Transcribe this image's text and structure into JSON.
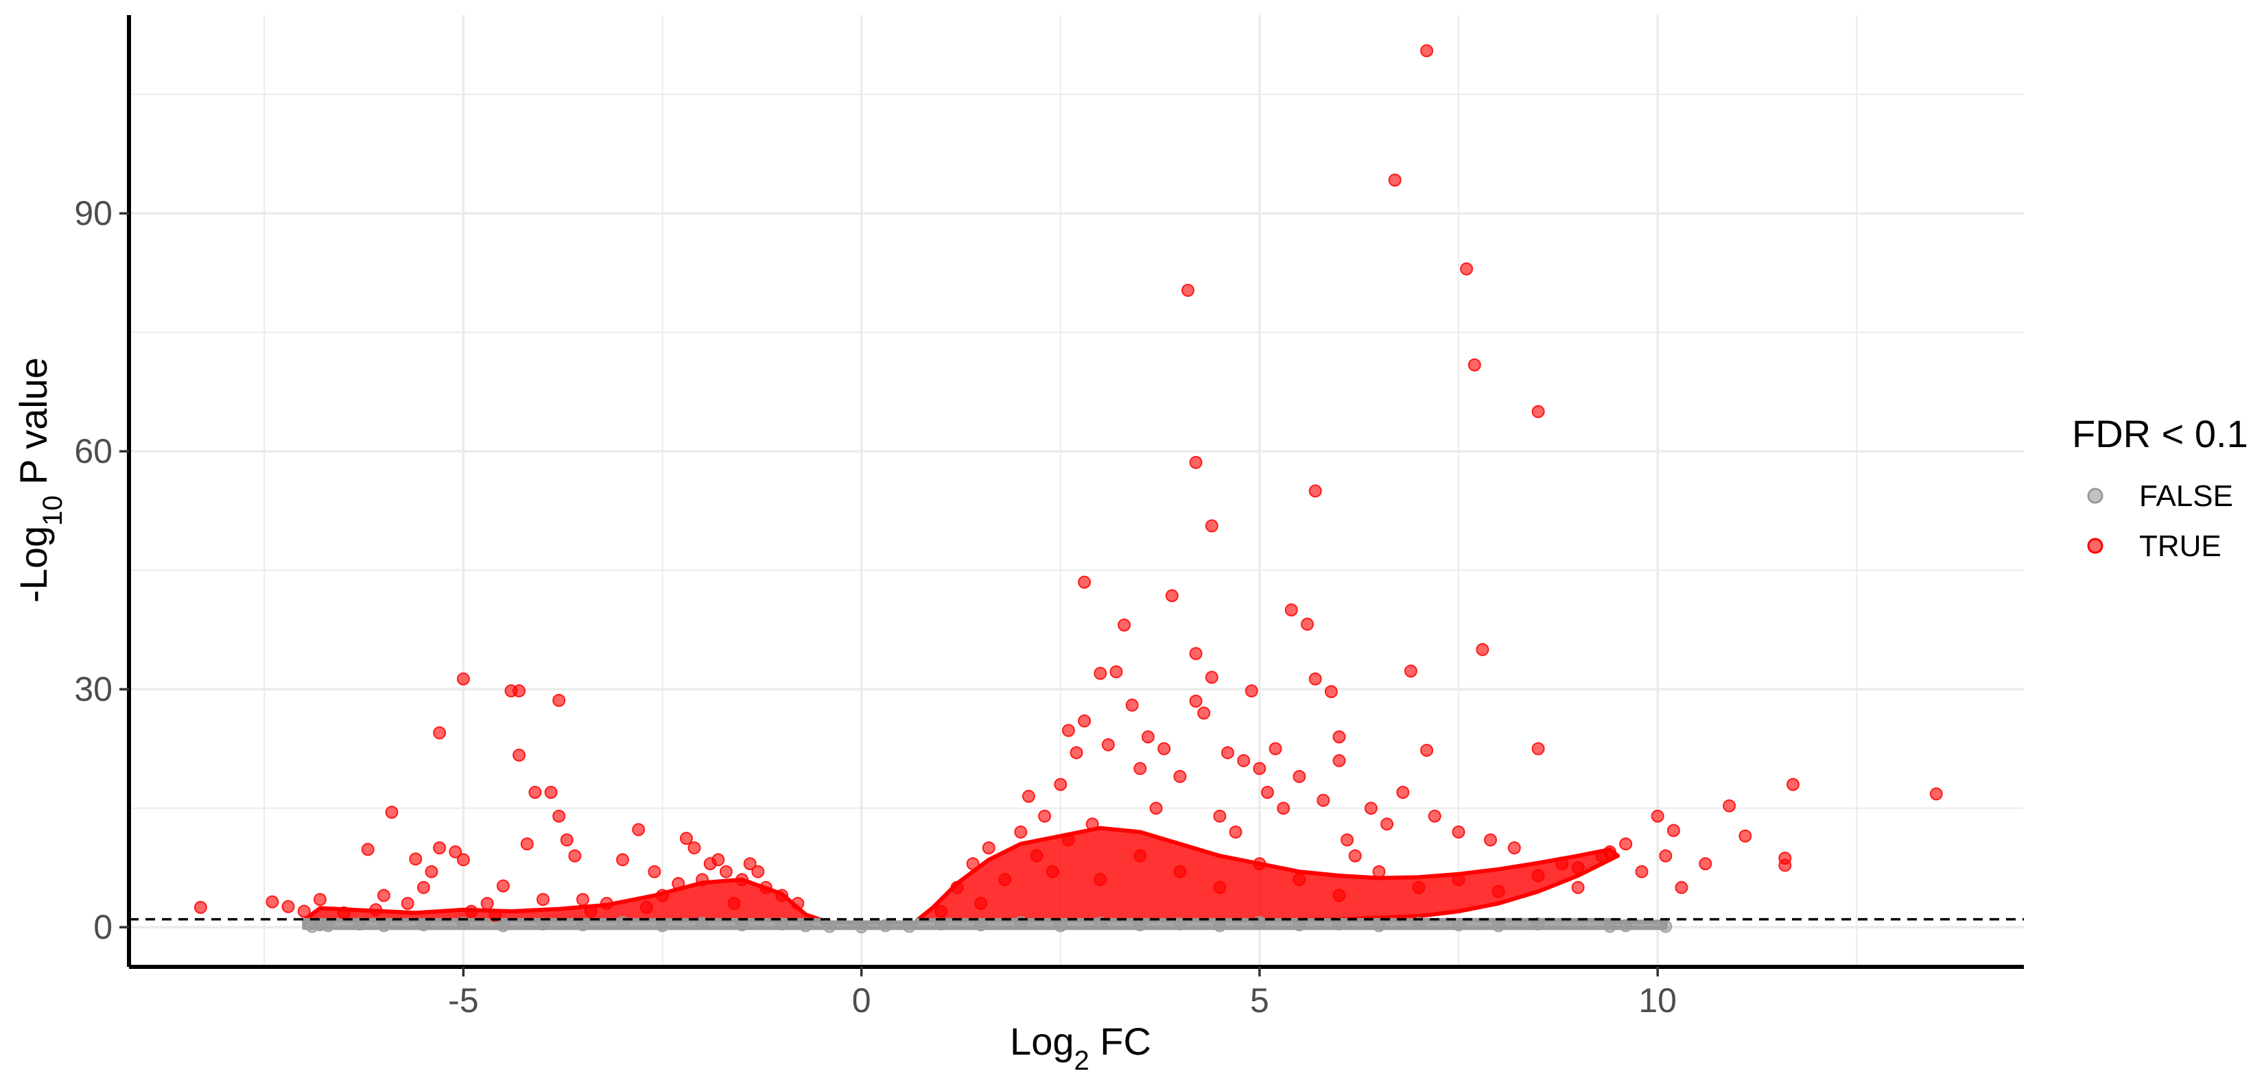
{
  "chart_data": {
    "type": "scatter",
    "title": "",
    "xlabel": {
      "main": "Log",
      "sub": "2",
      "rest": " FC"
    },
    "ylabel": {
      "main": "-Log",
      "sub": "10",
      "rest": " P value"
    },
    "xlim": [
      -9.2,
      14.6
    ],
    "ylim": [
      -5,
      115
    ],
    "x_ticks": [
      -5,
      0,
      5,
      10
    ],
    "x_tick_labels": [
      "-5",
      "0",
      "5",
      "10"
    ],
    "y_ticks": [
      0,
      30,
      60,
      90
    ],
    "y_tick_labels": [
      "0",
      "30",
      "60",
      "90"
    ],
    "grid": true,
    "threshold_line": {
      "y": 1,
      "style": "dashed",
      "color": "#000000"
    },
    "legend": {
      "title": "FDR < 0.1",
      "position": "right",
      "entries": [
        {
          "label": "FALSE",
          "color": "#999999"
        },
        {
          "label": "TRUE",
          "color": "#ff0000"
        }
      ]
    },
    "series": [
      {
        "name": "FALSE",
        "color": "#999999",
        "points": [
          [
            -6.9,
            0.1
          ],
          [
            -6.8,
            0.3
          ],
          [
            -6.7,
            0.2
          ],
          [
            -6.3,
            0.4
          ],
          [
            -6.0,
            0.2
          ],
          [
            -5.5,
            0.3
          ],
          [
            -5.0,
            0.5
          ],
          [
            -4.5,
            0.2
          ],
          [
            -4.0,
            0.4
          ],
          [
            -3.5,
            0.3
          ],
          [
            -3.0,
            0.6
          ],
          [
            -2.5,
            0.2
          ],
          [
            -2.0,
            0.5
          ],
          [
            -1.5,
            0.3
          ],
          [
            -1.0,
            0.4
          ],
          [
            -0.7,
            0.2
          ],
          [
            -0.4,
            0.1
          ],
          [
            0.0,
            0.05
          ],
          [
            0.3,
            0.2
          ],
          [
            0.6,
            0.1
          ],
          [
            1.0,
            0.4
          ],
          [
            1.5,
            0.3
          ],
          [
            2.0,
            0.6
          ],
          [
            2.5,
            0.2
          ],
          [
            3.0,
            0.5
          ],
          [
            3.5,
            0.3
          ],
          [
            4.0,
            0.4
          ],
          [
            4.5,
            0.2
          ],
          [
            5.0,
            0.6
          ],
          [
            5.5,
            0.3
          ],
          [
            6.0,
            0.4
          ],
          [
            6.5,
            0.2
          ],
          [
            7.0,
            0.5
          ],
          [
            7.5,
            0.3
          ],
          [
            8.0,
            0.2
          ],
          [
            8.5,
            0.4
          ],
          [
            9.4,
            0.1
          ],
          [
            9.6,
            0.2
          ],
          [
            10.1,
            0.1
          ]
        ]
      },
      {
        "name": "TRUE",
        "color": "#ff0000",
        "points": [
          [
            -8.3,
            2.5
          ],
          [
            -7.4,
            3.2
          ],
          [
            -7.2,
            2.6
          ],
          [
            -7.0,
            2.0
          ],
          [
            -6.8,
            3.5
          ],
          [
            -6.5,
            1.8
          ],
          [
            -6.2,
            9.8
          ],
          [
            -6.1,
            2.2
          ],
          [
            -6.0,
            4.0
          ],
          [
            -5.9,
            14.5
          ],
          [
            -5.7,
            3.0
          ],
          [
            -5.6,
            8.6
          ],
          [
            -5.5,
            5.0
          ],
          [
            -5.4,
            7.0
          ],
          [
            -5.3,
            24.5
          ],
          [
            -5.3,
            10.0
          ],
          [
            -5.1,
            9.5
          ],
          [
            -5.0,
            8.5
          ],
          [
            -5.0,
            31.3
          ],
          [
            -4.9,
            2.0
          ],
          [
            -4.7,
            3.0
          ],
          [
            -4.5,
            5.2
          ],
          [
            -4.4,
            29.8
          ],
          [
            -4.3,
            29.8
          ],
          [
            -4.3,
            21.7
          ],
          [
            -4.2,
            10.5
          ],
          [
            -4.1,
            17.0
          ],
          [
            -4.0,
            3.5
          ],
          [
            -3.9,
            17.0
          ],
          [
            -3.8,
            28.6
          ],
          [
            -3.8,
            14.0
          ],
          [
            -3.7,
            11.0
          ],
          [
            -3.6,
            9.0
          ],
          [
            -3.5,
            3.5
          ],
          [
            -3.2,
            3.0
          ],
          [
            -3.0,
            8.5
          ],
          [
            -2.8,
            12.3
          ],
          [
            -2.6,
            7.0
          ],
          [
            -2.5,
            4.0
          ],
          [
            -2.3,
            5.5
          ],
          [
            -2.2,
            11.2
          ],
          [
            -2.1,
            10.0
          ],
          [
            -2.0,
            6.0
          ],
          [
            -1.9,
            8.0
          ],
          [
            -1.8,
            8.5
          ],
          [
            -1.7,
            7.0
          ],
          [
            -1.5,
            6.0
          ],
          [
            -1.4,
            8.0
          ],
          [
            -1.3,
            7.0
          ],
          [
            -1.2,
            5.0
          ],
          [
            -1.0,
            4.0
          ],
          [
            -0.8,
            3.0
          ],
          [
            -4.6,
            1.5
          ],
          [
            -3.4,
            2.0
          ],
          [
            -2.7,
            2.5
          ],
          [
            -1.6,
            3.0
          ],
          [
            1.0,
            2.0
          ],
          [
            1.2,
            5.0
          ],
          [
            1.4,
            8.0
          ],
          [
            1.5,
            3.0
          ],
          [
            1.6,
            10.0
          ],
          [
            1.8,
            6.0
          ],
          [
            2.0,
            12.0
          ],
          [
            2.1,
            16.5
          ],
          [
            2.2,
            9.0
          ],
          [
            2.3,
            14.0
          ],
          [
            2.4,
            7.0
          ],
          [
            2.5,
            18.0
          ],
          [
            2.6,
            11.0
          ],
          [
            2.6,
            24.8
          ],
          [
            2.7,
            22.0
          ],
          [
            2.8,
            43.5
          ],
          [
            2.8,
            26.0
          ],
          [
            2.9,
            13.0
          ],
          [
            3.0,
            32.0
          ],
          [
            3.1,
            23.0
          ],
          [
            3.2,
            32.2
          ],
          [
            3.3,
            38.1
          ],
          [
            3.4,
            28.0
          ],
          [
            3.5,
            20.0
          ],
          [
            3.6,
            24.0
          ],
          [
            3.7,
            15.0
          ],
          [
            3.8,
            22.5
          ],
          [
            3.9,
            41.8
          ],
          [
            4.0,
            19.0
          ],
          [
            4.1,
            80.3
          ],
          [
            4.2,
            58.6
          ],
          [
            4.2,
            34.5
          ],
          [
            4.2,
            28.5
          ],
          [
            4.3,
            27.0
          ],
          [
            4.4,
            31.5
          ],
          [
            4.4,
            50.6
          ],
          [
            4.5,
            14.0
          ],
          [
            4.6,
            22.0
          ],
          [
            4.7,
            12.0
          ],
          [
            4.8,
            21.0
          ],
          [
            4.9,
            29.8
          ],
          [
            5.0,
            20.0
          ],
          [
            5.1,
            17.0
          ],
          [
            5.2,
            22.5
          ],
          [
            5.3,
            15.0
          ],
          [
            5.4,
            40.0
          ],
          [
            5.5,
            19.0
          ],
          [
            5.6,
            38.2
          ],
          [
            5.7,
            55.0
          ],
          [
            5.7,
            31.3
          ],
          [
            5.8,
            16.0
          ],
          [
            5.9,
            29.7
          ],
          [
            6.0,
            24.0
          ],
          [
            6.0,
            21.0
          ],
          [
            6.1,
            11.0
          ],
          [
            6.2,
            9.0
          ],
          [
            6.4,
            15.0
          ],
          [
            6.6,
            13.0
          ],
          [
            6.7,
            94.2
          ],
          [
            6.8,
            17.0
          ],
          [
            6.9,
            32.3
          ],
          [
            7.1,
            22.3
          ],
          [
            7.1,
            110.5
          ],
          [
            7.2,
            14.0
          ],
          [
            7.5,
            12.0
          ],
          [
            7.6,
            83.0
          ],
          [
            7.7,
            70.9
          ],
          [
            7.8,
            35.0
          ],
          [
            7.9,
            11.0
          ],
          [
            8.2,
            10.0
          ],
          [
            8.5,
            65.0
          ],
          [
            8.5,
            22.5
          ],
          [
            8.8,
            8.0
          ],
          [
            9.0,
            5.0
          ],
          [
            9.3,
            9.0
          ],
          [
            9.6,
            10.5
          ],
          [
            9.8,
            7.0
          ],
          [
            10.0,
            14.0
          ],
          [
            10.1,
            9.0
          ],
          [
            10.2,
            12.2
          ],
          [
            10.3,
            5.0
          ],
          [
            10.6,
            8.0
          ],
          [
            10.9,
            15.3
          ],
          [
            11.1,
            11.5
          ],
          [
            11.6,
            8.7
          ],
          [
            11.6,
            7.8
          ],
          [
            11.7,
            18.0
          ],
          [
            13.5,
            16.8
          ],
          [
            3.0,
            6.0
          ],
          [
            3.5,
            9.0
          ],
          [
            4.0,
            7.0
          ],
          [
            4.5,
            5.0
          ],
          [
            5.0,
            8.0
          ],
          [
            5.5,
            6.0
          ],
          [
            6.0,
            4.0
          ],
          [
            6.5,
            7.0
          ],
          [
            7.0,
            5.0
          ],
          [
            7.5,
            6.0
          ],
          [
            8.0,
            4.5
          ],
          [
            8.5,
            6.5
          ],
          [
            9.0,
            7.5
          ],
          [
            9.4,
            9.5
          ]
        ]
      }
    ],
    "density_bands": [
      {
        "name": "TRUE",
        "color": "#ff0000",
        "outline": [
          [
            -7.0,
            0.9
          ],
          [
            -6.8,
            2.4
          ],
          [
            -6.2,
            2.1
          ],
          [
            -5.6,
            1.8
          ],
          [
            -5.0,
            2.2
          ],
          [
            -4.4,
            2.0
          ],
          [
            -3.8,
            2.3
          ],
          [
            -3.2,
            2.8
          ],
          [
            -2.6,
            4.0
          ],
          [
            -2.0,
            5.6
          ],
          [
            -1.5,
            6.0
          ],
          [
            -1.0,
            4.2
          ],
          [
            -0.7,
            1.6
          ],
          [
            -0.5,
            0.9
          ],
          [
            -7.0,
            0.9
          ]
        ]
      },
      {
        "name": "TRUE",
        "color": "#ff0000",
        "outline": [
          [
            0.7,
            0.9
          ],
          [
            0.9,
            2.5
          ],
          [
            1.2,
            5.5
          ],
          [
            1.6,
            8.5
          ],
          [
            2.0,
            10.5
          ],
          [
            2.5,
            11.5
          ],
          [
            3.0,
            12.5
          ],
          [
            3.5,
            12.0
          ],
          [
            4.0,
            10.5
          ],
          [
            4.5,
            9.0
          ],
          [
            5.0,
            8.0
          ],
          [
            5.5,
            7.0
          ],
          [
            6.0,
            6.5
          ],
          [
            6.5,
            6.2
          ],
          [
            7.0,
            6.3
          ],
          [
            7.5,
            6.7
          ],
          [
            8.0,
            7.3
          ],
          [
            8.5,
            8.1
          ],
          [
            9.0,
            9.0
          ],
          [
            9.4,
            9.8
          ],
          [
            9.5,
            9.0
          ],
          [
            9.0,
            6.5
          ],
          [
            8.5,
            4.5
          ],
          [
            8.0,
            3.0
          ],
          [
            7.5,
            2.0
          ],
          [
            7.0,
            1.4
          ],
          [
            6.0,
            1.0
          ],
          [
            5.0,
            0.9
          ],
          [
            0.7,
            0.9
          ]
        ]
      },
      {
        "name": "FALSE",
        "color": "#999999",
        "outline": [
          [
            -7.0,
            -0.1
          ],
          [
            -7.0,
            0.9
          ],
          [
            -0.5,
            0.9
          ],
          [
            -0.5,
            0.6
          ],
          [
            0.7,
            0.6
          ],
          [
            0.7,
            0.9
          ],
          [
            9.4,
            0.9
          ],
          [
            9.4,
            0.7
          ],
          [
            10.1,
            0.7
          ],
          [
            10.1,
            -0.1
          ],
          [
            -7.0,
            -0.1
          ]
        ]
      }
    ]
  }
}
